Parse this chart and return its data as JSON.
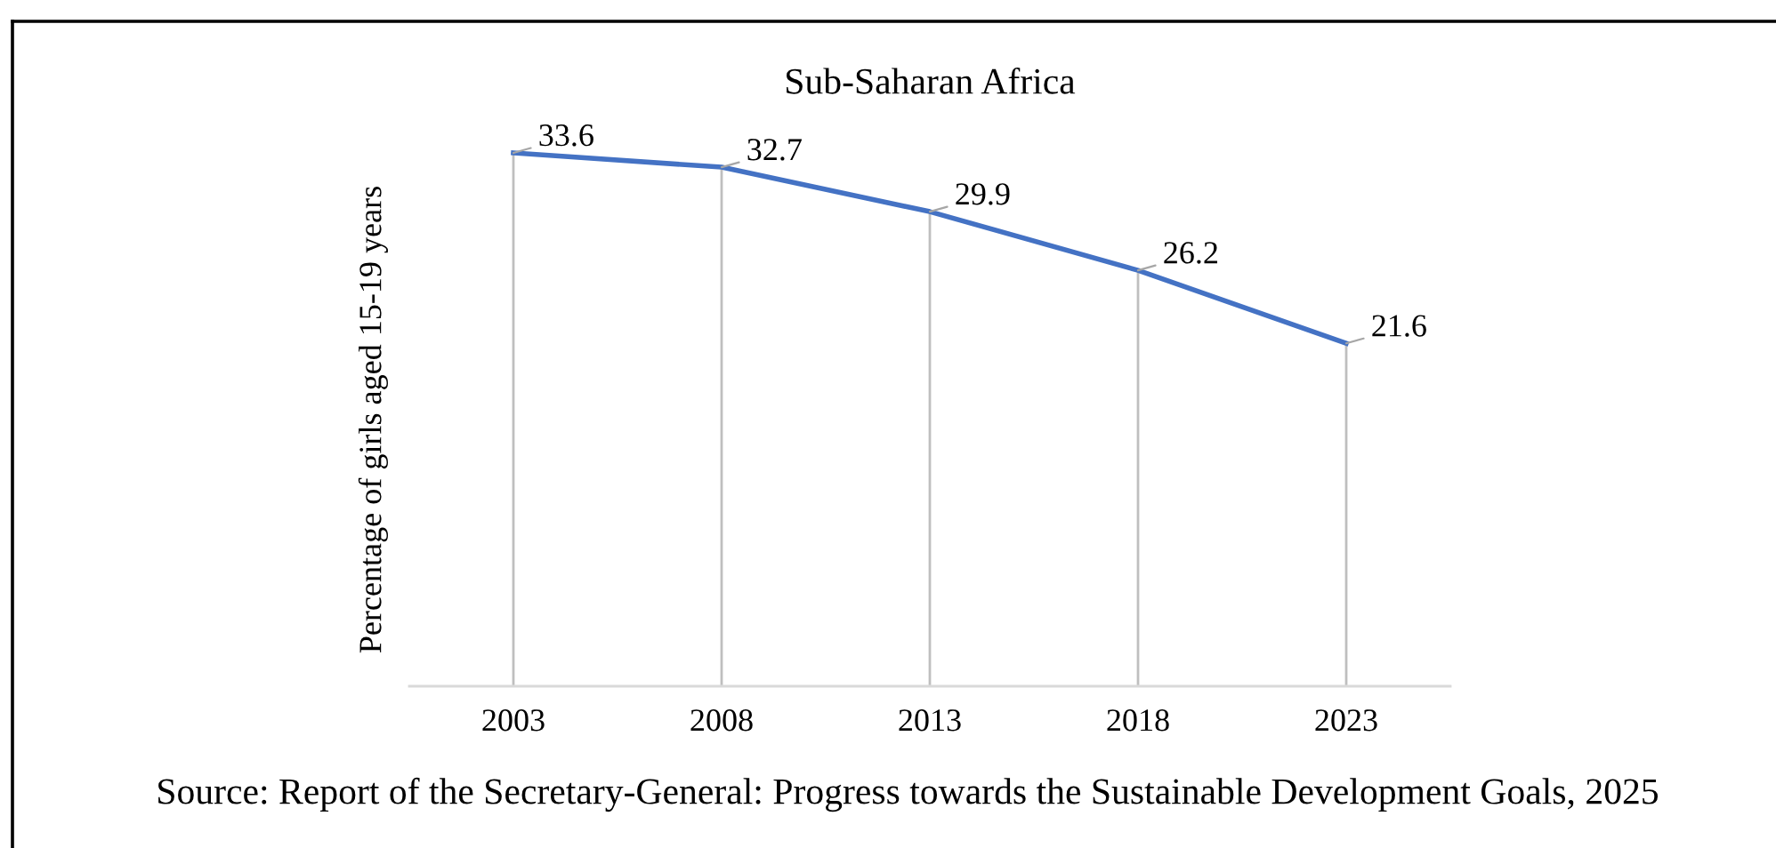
{
  "chart_data": {
    "type": "line",
    "title": "Sub-Saharan Africa",
    "ylabel": "Percentage of girls aged 15-19 years",
    "categories": [
      "2003",
      "2008",
      "2013",
      "2018",
      "2023"
    ],
    "series": [
      {
        "color": "#4472c4",
        "values": [
          33.6,
          32.7,
          29.9,
          26.2,
          21.6
        ]
      }
    ],
    "tick_labels": "x",
    "data_labels": true,
    "line_style": "solid",
    "grid": "x",
    "annotations": [
      "Source: Report of the Secretary-General: Progress towards the Sustainable Development Goals, 2025"
    ]
  }
}
